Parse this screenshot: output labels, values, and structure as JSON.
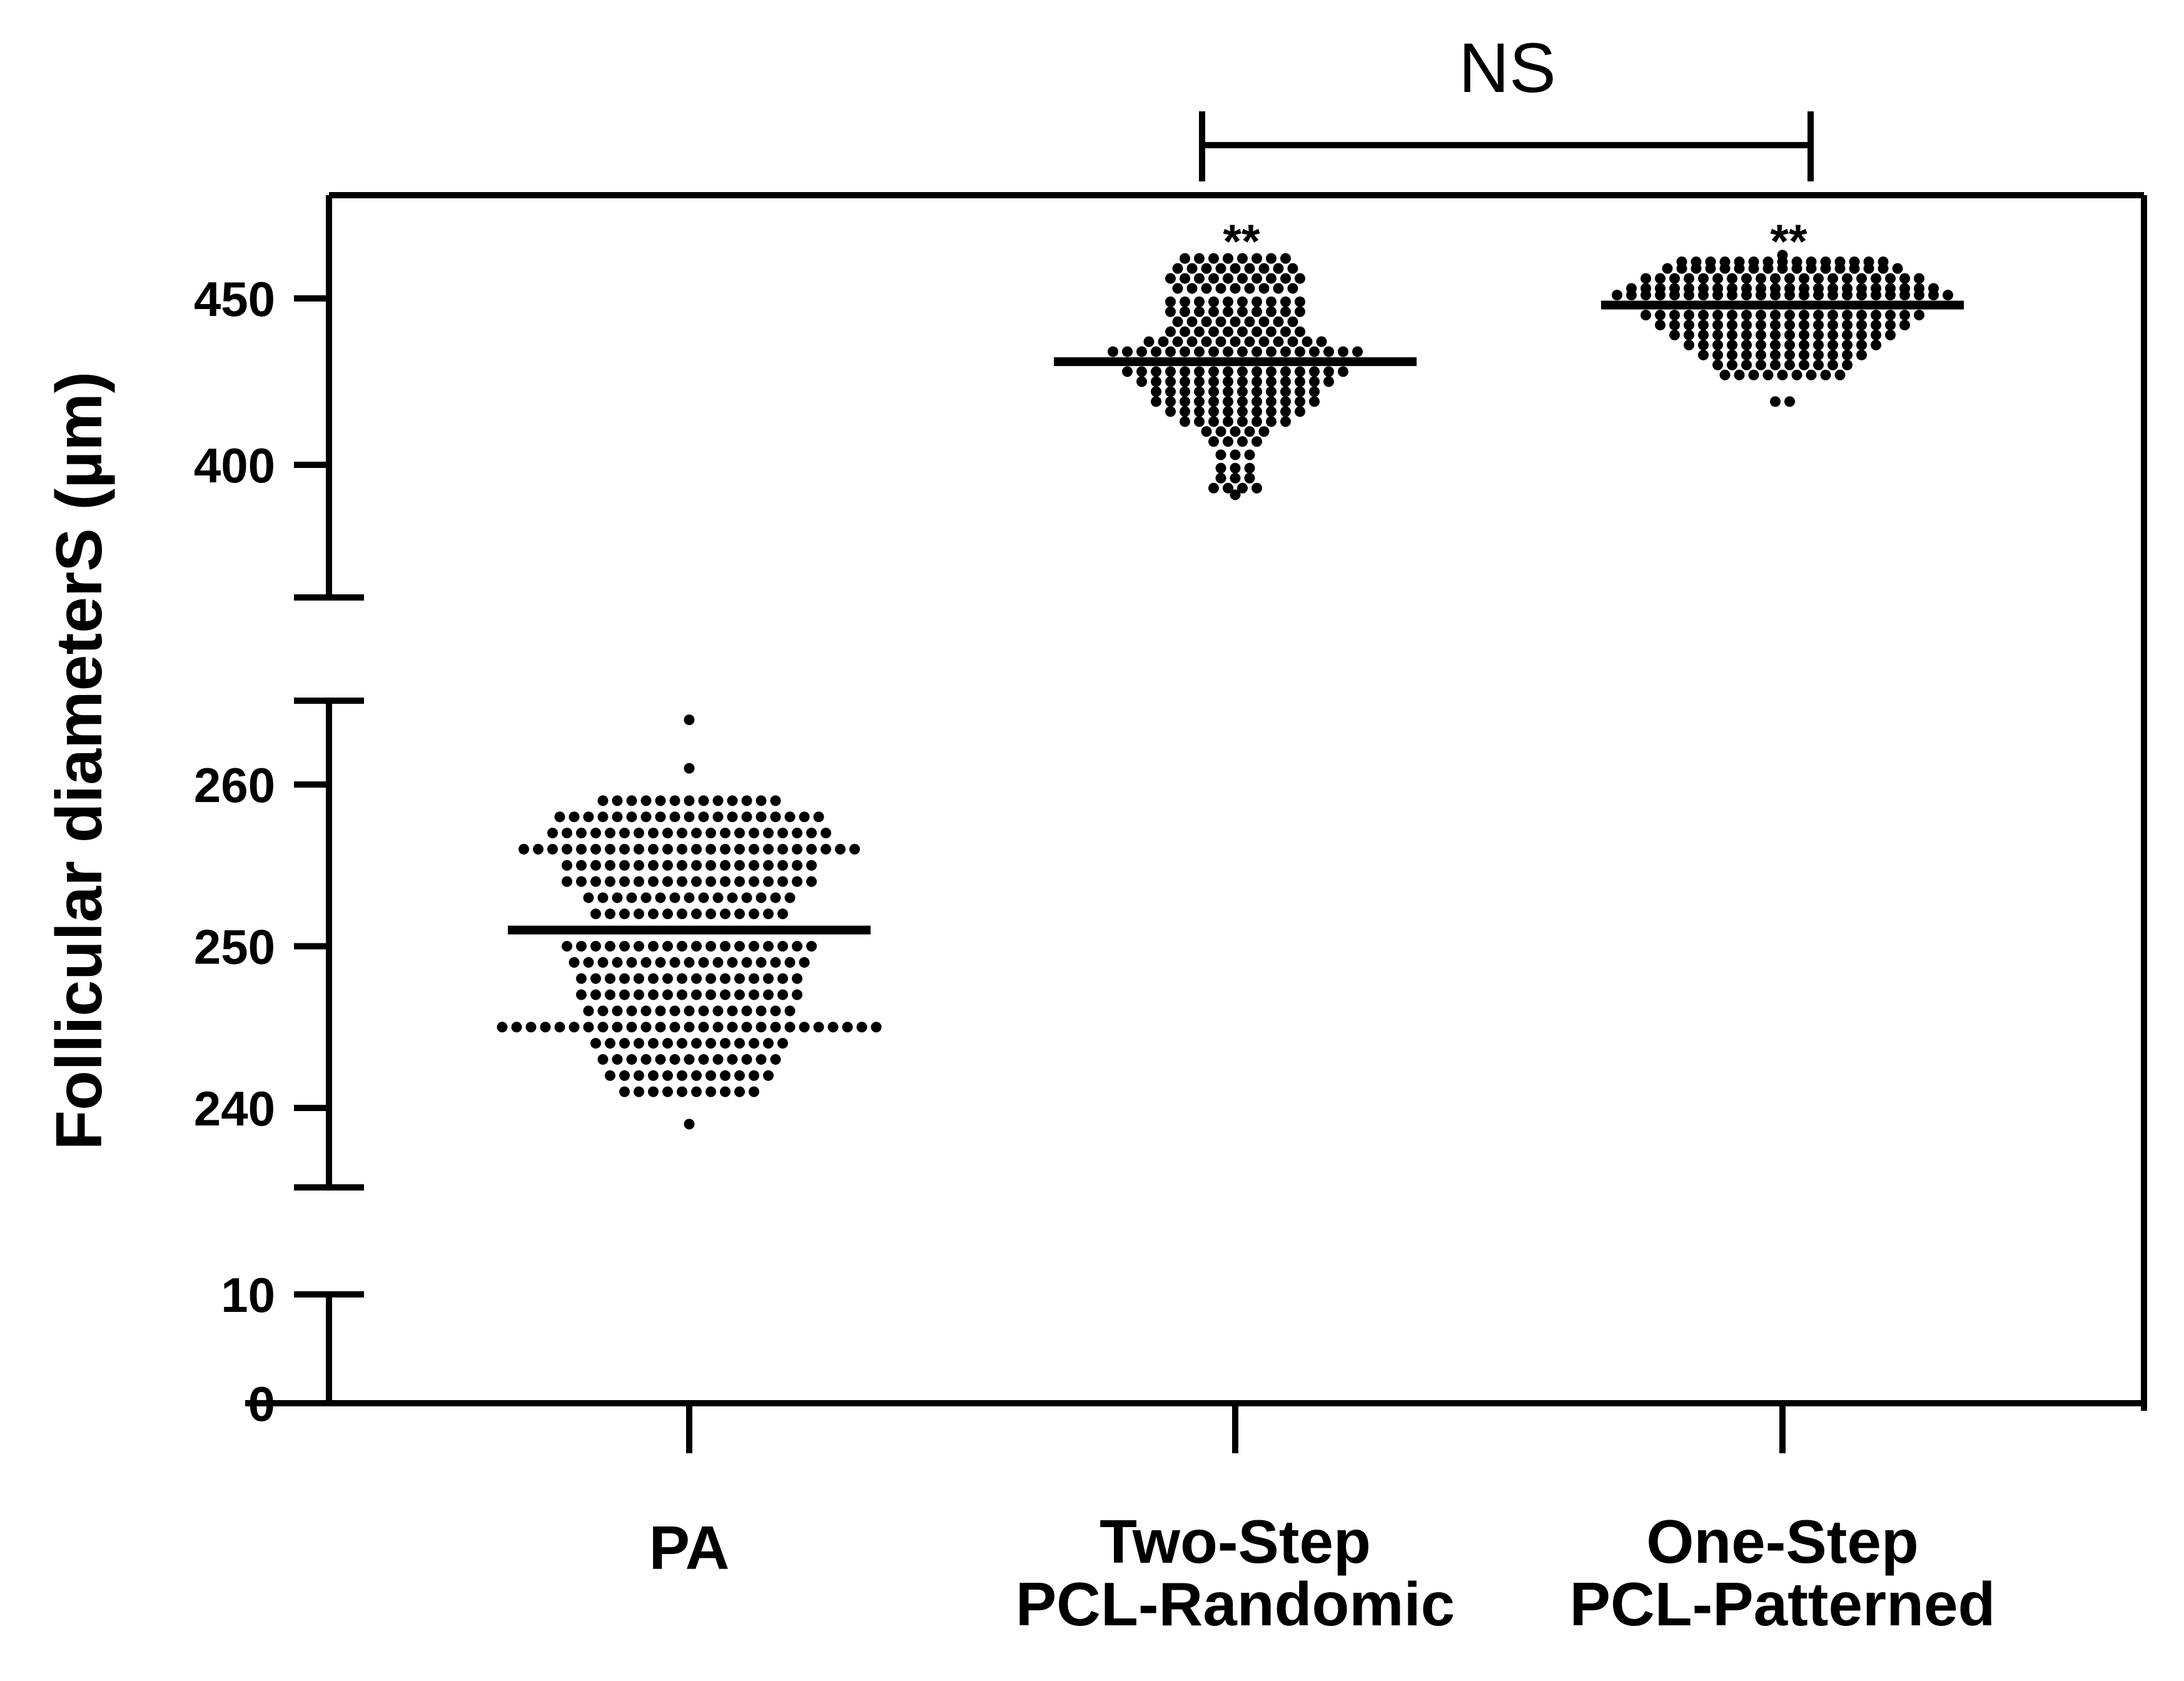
{
  "chart_data": {
    "type": "scatter",
    "subtype": "dot-plot with mean line",
    "ylabel": "Follicular diameterS (µm)",
    "y_axis_segments": [
      {
        "range": [
          0,
          10
        ],
        "ticks": [
          0,
          10
        ],
        "tick_labels": [
          "0",
          "10"
        ]
      },
      {
        "range": [
          236,
          265
        ],
        "ticks": [
          240,
          250,
          260
        ],
        "tick_labels": [
          "240",
          "250",
          "260"
        ]
      },
      {
        "range": [
          365,
          480
        ],
        "ticks": [
          400,
          450
        ],
        "tick_labels": [
          "400",
          "450"
        ]
      }
    ],
    "categories": [
      {
        "label_lines": [
          "PA"
        ],
        "mean": 251,
        "min": 239,
        "max": 264,
        "significance": ""
      },
      {
        "label_lines": [
          "Two-Step",
          "PCL-Randomic"
        ],
        "mean": 431,
        "min": 391,
        "max": 462,
        "significance": "**"
      },
      {
        "label_lines": [
          "One-Step",
          "PCL-Patterned"
        ],
        "mean": 448,
        "min": 419,
        "max": 463,
        "significance": "**"
      }
    ],
    "comparison": {
      "label": "NS",
      "between": [
        1,
        2
      ]
    },
    "series": [
      {
        "category": 0,
        "points": [
          {
            "y": 264,
            "n": 1
          },
          {
            "y": 261,
            "n": 1
          },
          {
            "y": 259,
            "n": 13
          },
          {
            "y": 258,
            "n": 19
          },
          {
            "y": 257,
            "n": 20
          },
          {
            "y": 256,
            "n": 24
          },
          {
            "y": 255,
            "n": 18
          },
          {
            "y": 254,
            "n": 18
          },
          {
            "y": 253,
            "n": 15
          },
          {
            "y": 252,
            "n": 14
          },
          {
            "y": 250,
            "n": 18
          },
          {
            "y": 249,
            "n": 17
          },
          {
            "y": 248,
            "n": 16
          },
          {
            "y": 247,
            "n": 16
          },
          {
            "y": 246,
            "n": 15
          },
          {
            "y": 245,
            "n": 27
          },
          {
            "y": 244,
            "n": 14
          },
          {
            "y": 243,
            "n": 13
          },
          {
            "y": 242,
            "n": 12
          },
          {
            "y": 241,
            "n": 10
          },
          {
            "y": 239,
            "n": 1
          }
        ]
      },
      {
        "category": 1,
        "points": [
          {
            "y": 462,
            "n": 8
          },
          {
            "y": 459,
            "n": 9
          },
          {
            "y": 456,
            "n": 10
          },
          {
            "y": 453,
            "n": 9
          },
          {
            "y": 449,
            "n": 10
          },
          {
            "y": 446,
            "n": 10
          },
          {
            "y": 443,
            "n": 9
          },
          {
            "y": 440,
            "n": 10
          },
          {
            "y": 437,
            "n": 13
          },
          {
            "y": 434,
            "n": 18
          },
          {
            "y": 428,
            "n": 16
          },
          {
            "y": 425,
            "n": 14
          },
          {
            "y": 422,
            "n": 12
          },
          {
            "y": 419,
            "n": 12
          },
          {
            "y": 416,
            "n": 10
          },
          {
            "y": 413,
            "n": 8
          },
          {
            "y": 410,
            "n": 5
          },
          {
            "y": 407,
            "n": 4
          },
          {
            "y": 403,
            "n": 3
          },
          {
            "y": 399,
            "n": 3
          },
          {
            "y": 396,
            "n": 3
          },
          {
            "y": 393,
            "n": 4
          },
          {
            "y": 391,
            "n": 1
          }
        ]
      },
      {
        "category": 2,
        "points": [
          {
            "y": 463,
            "n": 1
          },
          {
            "y": 461,
            "n": 15
          },
          {
            "y": 459,
            "n": 17
          },
          {
            "y": 456,
            "n": 20
          },
          {
            "y": 453,
            "n": 22
          },
          {
            "y": 451,
            "n": 24
          },
          {
            "y": 445,
            "n": 20
          },
          {
            "y": 442,
            "n": 18
          },
          {
            "y": 439,
            "n": 16
          },
          {
            "y": 436,
            "n": 14
          },
          {
            "y": 433,
            "n": 12
          },
          {
            "y": 430,
            "n": 10
          },
          {
            "y": 427,
            "n": 9
          },
          {
            "y": 419,
            "n": 2
          }
        ]
      }
    ],
    "grid": false,
    "legend": "none"
  }
}
